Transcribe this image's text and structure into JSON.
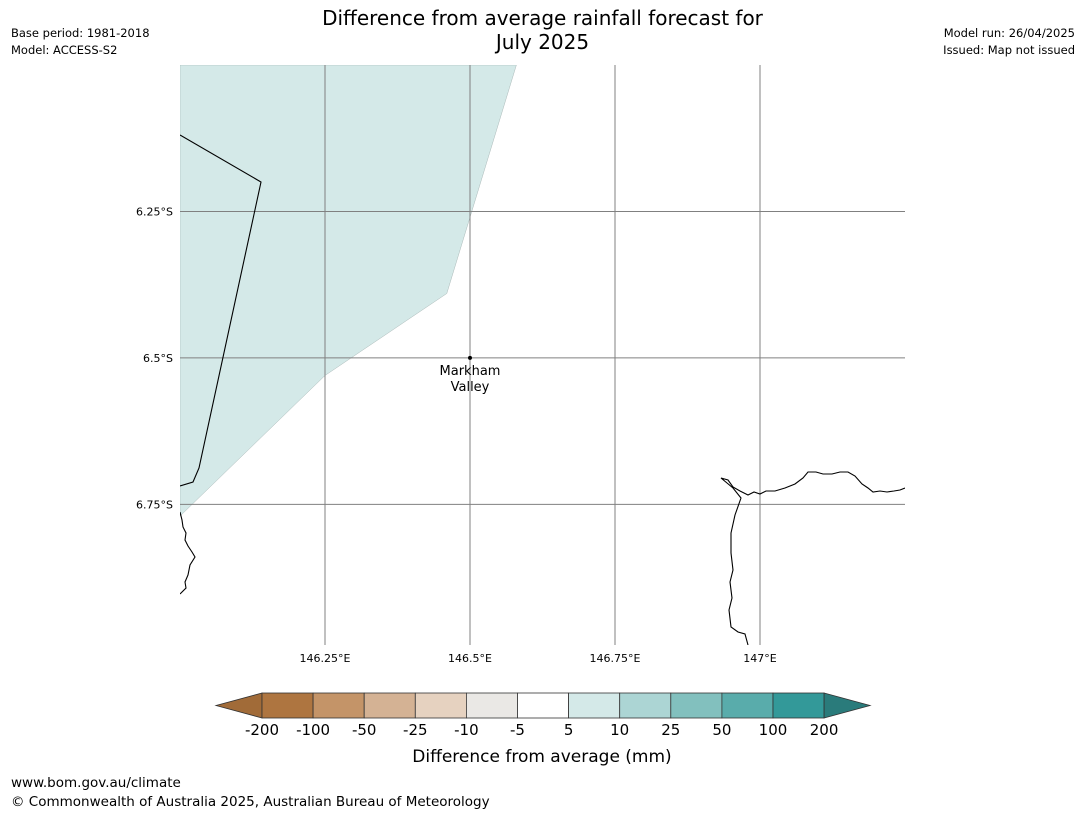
{
  "header": {
    "base_period": "Base period: 1981-2018",
    "model": "Model: ACCESS-S2",
    "title_line1": "Difference from average rainfall forecast for",
    "title_line2": "July 2025",
    "model_run": "Model run: 26/04/2025",
    "issued": "Issued: Map not issued"
  },
  "map": {
    "lon_range": [
      146.0,
      147.25
    ],
    "lat_range": [
      -6.99,
      -6.0
    ],
    "lon_ticks": [
      {
        "value": 146.25,
        "label": "146.25°E"
      },
      {
        "value": 146.5,
        "label": "146.5°E"
      },
      {
        "value": 146.75,
        "label": "146.75°E"
      },
      {
        "value": 147.0,
        "label": "147°E"
      }
    ],
    "lat_ticks": [
      {
        "value": -6.25,
        "label": "6.25°S"
      },
      {
        "value": -6.5,
        "label": "6.5°S"
      },
      {
        "value": -6.75,
        "label": "6.75°S"
      }
    ],
    "location": {
      "name_line1": "Markham",
      "name_line2": "Valley",
      "lon": 146.5,
      "lat": -6.5
    },
    "shaded_region": {
      "category": "5 to 10",
      "color": "#d4e9e8",
      "points": [
        [
          146.0,
          -6.0
        ],
        [
          146.58,
          -6.0
        ],
        [
          146.46,
          -6.39
        ],
        [
          146.25,
          -6.53
        ],
        [
          146.0,
          -6.77
        ]
      ]
    },
    "boundary_color": "#000000",
    "grid_color": "#808080"
  },
  "colorbar": {
    "title": "Difference from average (mm)",
    "labels": [
      "-200",
      "-100",
      "-50",
      "-25",
      "-10",
      "-5",
      "5",
      "10",
      "25",
      "50",
      "100",
      "200"
    ],
    "colors": [
      "#a16b38",
      "#ae7540",
      "#c49468",
      "#d4b294",
      "#e6d2c0",
      "#eae8e5",
      "#ffffff",
      "#d4e9e8",
      "#acd5d4",
      "#82c0be",
      "#59acab",
      "#339999",
      "#2a7b7b"
    ]
  },
  "footer": {
    "url": "www.bom.gov.au/climate",
    "copyright": "© Commonwealth of Australia 2025, Australian Bureau of Meteorology"
  }
}
